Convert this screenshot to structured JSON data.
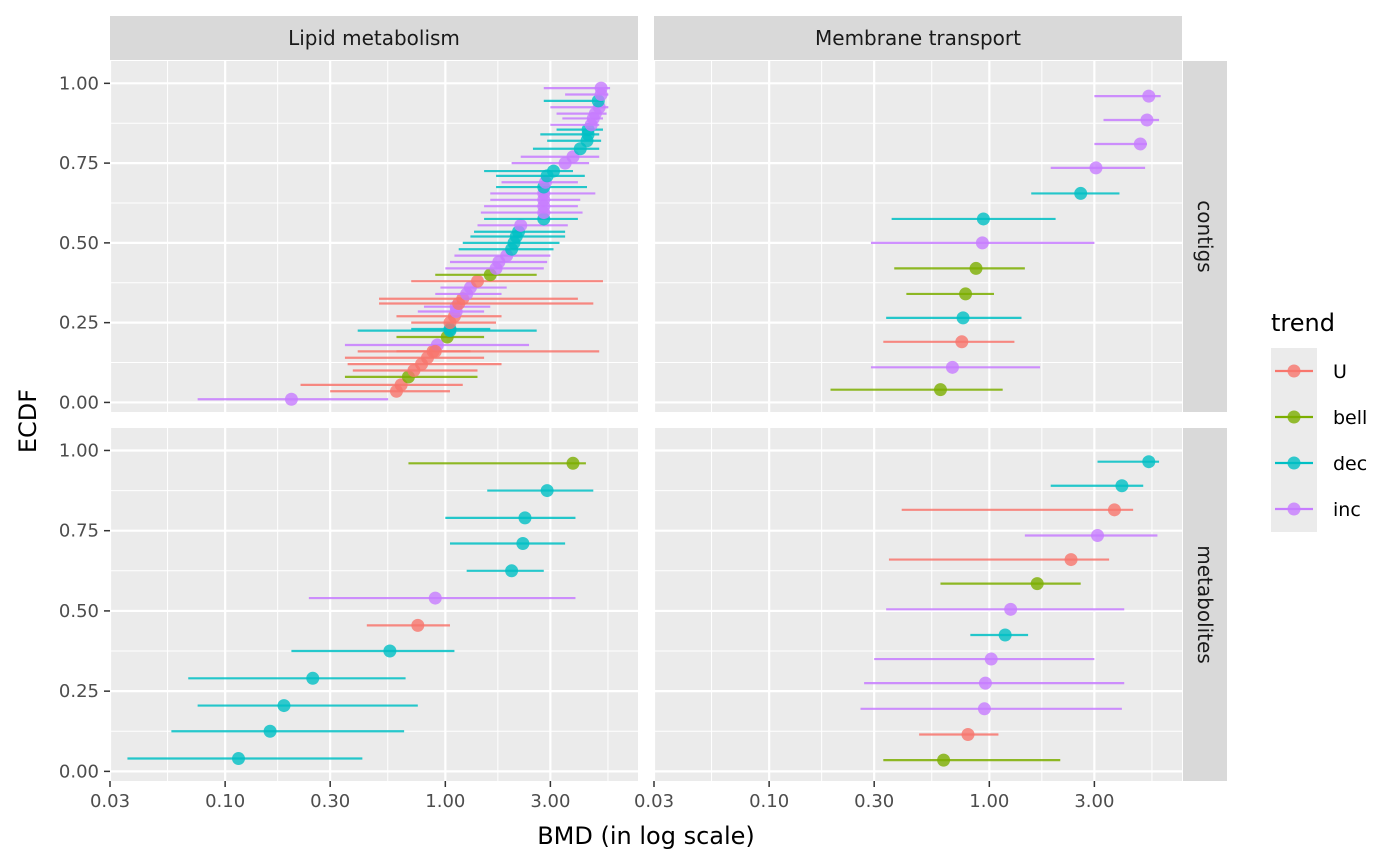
{
  "chart_data": {
    "type": "scatter",
    "subtype": "faceted dot plot with horizontal error bars",
    "xlabel": "BMD (in log scale)",
    "ylabel": "ECDF",
    "x_scale": "log10",
    "xlim": [
      0.03,
      7.5
    ],
    "ylim": [
      -0.03,
      1.07
    ],
    "x_ticks": [
      0.03,
      0.1,
      0.3,
      1,
      3
    ],
    "x_tick_labels": [
      "0.03",
      "0.10",
      "0.30",
      "1.00",
      "3.00"
    ],
    "y_ticks": [
      0,
      0.25,
      0.5,
      0.75,
      1
    ],
    "y_tick_labels": [
      "0.00",
      "0.25",
      "0.50",
      "0.75",
      "1.00"
    ],
    "grid": true,
    "columns": [
      "Lipid metabolism",
      "Membrane transport"
    ],
    "rows": [
      "contigs",
      "metabolites"
    ],
    "legend": {
      "title": "trend",
      "placement": "right",
      "entries": [
        {
          "label": "U",
          "color": "#F8766D"
        },
        {
          "label": "bell",
          "color": "#7CAE00"
        },
        {
          "label": "dec",
          "color": "#00BFC4"
        },
        {
          "label": "inc",
          "color": "#C77CFF"
        }
      ]
    },
    "panels": [
      {
        "column": "Lipid metabolism",
        "row": "contigs",
        "points": [
          {
            "trend": "inc",
            "y": 0.01,
            "x": 0.2,
            "lo": 0.075,
            "hi": 0.55
          },
          {
            "trend": "U",
            "y": 0.035,
            "x": 0.6,
            "lo": 0.3,
            "hi": 1.05
          },
          {
            "trend": "U",
            "y": 0.055,
            "x": 0.63,
            "lo": 0.22,
            "hi": 1.2
          },
          {
            "trend": "bell",
            "y": 0.08,
            "x": 0.68,
            "lo": 0.35,
            "hi": 1.4
          },
          {
            "trend": "U",
            "y": 0.1,
            "x": 0.72,
            "lo": 0.38,
            "hi": 1.4
          },
          {
            "trend": "U",
            "y": 0.12,
            "x": 0.78,
            "lo": 0.36,
            "hi": 1.8
          },
          {
            "trend": "U",
            "y": 0.14,
            "x": 0.83,
            "lo": 0.35,
            "hi": 1.5
          },
          {
            "trend": "U",
            "y": 0.16,
            "x": 0.88,
            "lo": 0.4,
            "hi": 1.3
          },
          {
            "trend": "inc",
            "y": 0.18,
            "x": 0.92,
            "lo": 0.35,
            "hi": 2.4
          },
          {
            "trend": "U",
            "y": 0.16,
            "x": 0.9,
            "lo": 0.6,
            "hi": 5.0
          },
          {
            "trend": "bell",
            "y": 0.205,
            "x": 1.02,
            "lo": 0.6,
            "hi": 1.5
          },
          {
            "trend": "dec",
            "y": 0.225,
            "x": 1.05,
            "lo": 0.4,
            "hi": 2.6
          },
          {
            "trend": "dec",
            "y": 0.23,
            "x": 1.05,
            "lo": 0.7,
            "hi": 1.6
          },
          {
            "trend": "U",
            "y": 0.25,
            "x": 1.05,
            "lo": 0.7,
            "hi": 1.7
          },
          {
            "trend": "U",
            "y": 0.27,
            "x": 1.1,
            "lo": 0.6,
            "hi": 1.8
          },
          {
            "trend": "inc",
            "y": 0.285,
            "x": 1.12,
            "lo": 0.75,
            "hi": 1.5
          },
          {
            "trend": "inc",
            "y": 0.3,
            "x": 1.12,
            "lo": 0.8,
            "hi": 1.6
          },
          {
            "trend": "U",
            "y": 0.31,
            "x": 1.15,
            "lo": 0.5,
            "hi": 4.7
          },
          {
            "trend": "U",
            "y": 0.325,
            "x": 1.2,
            "lo": 0.5,
            "hi": 4.0
          },
          {
            "trend": "inc",
            "y": 0.34,
            "x": 1.25,
            "lo": 0.9,
            "hi": 1.8
          },
          {
            "trend": "inc",
            "y": 0.36,
            "x": 1.3,
            "lo": 0.95,
            "hi": 1.9
          },
          {
            "trend": "U",
            "y": 0.38,
            "x": 1.4,
            "lo": 0.7,
            "hi": 5.2
          },
          {
            "trend": "bell",
            "y": 0.4,
            "x": 1.6,
            "lo": 0.9,
            "hi": 2.6
          },
          {
            "trend": "inc",
            "y": 0.42,
            "x": 1.7,
            "lo": 1.0,
            "hi": 2.8
          },
          {
            "trend": "inc",
            "y": 0.44,
            "x": 1.75,
            "lo": 1.05,
            "hi": 2.9
          },
          {
            "trend": "inc",
            "y": 0.46,
            "x": 1.9,
            "lo": 1.1,
            "hi": 3.0
          },
          {
            "trend": "dec",
            "y": 0.48,
            "x": 2.0,
            "lo": 1.15,
            "hi": 3.1
          },
          {
            "trend": "dec",
            "y": 0.5,
            "x": 2.05,
            "lo": 1.2,
            "hi": 3.3
          },
          {
            "trend": "dec",
            "y": 0.52,
            "x": 2.1,
            "lo": 1.3,
            "hi": 3.5
          },
          {
            "trend": "dec",
            "y": 0.535,
            "x": 2.15,
            "lo": 1.35,
            "hi": 3.5
          },
          {
            "trend": "inc",
            "y": 0.555,
            "x": 2.2,
            "lo": 1.4,
            "hi": 3.6
          },
          {
            "trend": "dec",
            "y": 0.575,
            "x": 2.8,
            "lo": 1.5,
            "hi": 4.0
          },
          {
            "trend": "inc",
            "y": 0.595,
            "x": 2.8,
            "lo": 1.45,
            "hi": 4.2
          },
          {
            "trend": "inc",
            "y": 0.615,
            "x": 2.8,
            "lo": 1.5,
            "hi": 4.0
          },
          {
            "trend": "inc",
            "y": 0.635,
            "x": 2.8,
            "lo": 1.6,
            "hi": 4.1
          },
          {
            "trend": "inc",
            "y": 0.655,
            "x": 2.8,
            "lo": 1.6,
            "hi": 4.8
          },
          {
            "trend": "dec",
            "y": 0.675,
            "x": 2.8,
            "lo": 1.7,
            "hi": 4.4
          },
          {
            "trend": "inc",
            "y": 0.69,
            "x": 2.85,
            "lo": 1.8,
            "hi": 4.0
          },
          {
            "trend": "dec",
            "y": 0.71,
            "x": 2.9,
            "lo": 1.7,
            "hi": 4.3
          },
          {
            "trend": "dec",
            "y": 0.725,
            "x": 3.1,
            "lo": 1.5,
            "hi": 3.8
          },
          {
            "trend": "inc",
            "y": 0.75,
            "x": 3.5,
            "lo": 2.0,
            "hi": 4.5
          },
          {
            "trend": "inc",
            "y": 0.77,
            "x": 3.8,
            "lo": 2.2,
            "hi": 5.0
          },
          {
            "trend": "dec",
            "y": 0.795,
            "x": 4.1,
            "lo": 2.5,
            "hi": 5.0
          },
          {
            "trend": "dec",
            "y": 0.82,
            "x": 4.4,
            "lo": 2.9,
            "hi": 5.1
          },
          {
            "trend": "dec",
            "y": 0.84,
            "x": 4.45,
            "lo": 2.7,
            "hi": 5.0
          },
          {
            "trend": "dec",
            "y": 0.855,
            "x": 4.45,
            "lo": 3.2,
            "hi": 5.2
          },
          {
            "trend": "inc",
            "y": 0.87,
            "x": 4.6,
            "lo": 3.0,
            "hi": 5.0
          },
          {
            "trend": "inc",
            "y": 0.89,
            "x": 4.7,
            "lo": 3.4,
            "hi": 5.2
          },
          {
            "trend": "inc",
            "y": 0.905,
            "x": 4.8,
            "lo": 3.2,
            "hi": 5.4
          },
          {
            "trend": "inc",
            "y": 0.925,
            "x": 5.0,
            "lo": 3.0,
            "hi": 5.5
          },
          {
            "trend": "dec",
            "y": 0.945,
            "x": 4.95,
            "lo": 2.8,
            "hi": 5.2
          },
          {
            "trend": "inc",
            "y": 0.965,
            "x": 5.1,
            "lo": 3.5,
            "hi": 5.5
          },
          {
            "trend": "inc",
            "y": 0.985,
            "x": 5.1,
            "lo": 2.8,
            "hi": 5.6
          }
        ]
      },
      {
        "column": "Membrane transport",
        "row": "contigs",
        "points": [
          {
            "trend": "bell",
            "y": 0.04,
            "x": 0.6,
            "lo": 0.19,
            "hi": 1.15
          },
          {
            "trend": "inc",
            "y": 0.11,
            "x": 0.68,
            "lo": 0.29,
            "hi": 1.7
          },
          {
            "trend": "U",
            "y": 0.19,
            "x": 0.75,
            "lo": 0.33,
            "hi": 1.3
          },
          {
            "trend": "dec",
            "y": 0.265,
            "x": 0.76,
            "lo": 0.34,
            "hi": 1.4
          },
          {
            "trend": "bell",
            "y": 0.34,
            "x": 0.78,
            "lo": 0.42,
            "hi": 1.05
          },
          {
            "trend": "bell",
            "y": 0.42,
            "x": 0.87,
            "lo": 0.37,
            "hi": 1.45
          },
          {
            "trend": "inc",
            "y": 0.5,
            "x": 0.93,
            "lo": 0.29,
            "hi": 3.0
          },
          {
            "trend": "dec",
            "y": 0.575,
            "x": 0.94,
            "lo": 0.36,
            "hi": 2.0
          },
          {
            "trend": "dec",
            "y": 0.655,
            "x": 2.6,
            "lo": 1.55,
            "hi": 3.9
          },
          {
            "trend": "inc",
            "y": 0.735,
            "x": 3.05,
            "lo": 1.9,
            "hi": 5.1
          },
          {
            "trend": "inc",
            "y": 0.81,
            "x": 4.85,
            "lo": 3.0,
            "hi": 5.2
          },
          {
            "trend": "inc",
            "y": 0.885,
            "x": 5.2,
            "lo": 3.3,
            "hi": 5.9
          },
          {
            "trend": "inc",
            "y": 0.96,
            "x": 5.3,
            "lo": 3.0,
            "hi": 6.0
          }
        ]
      },
      {
        "column": "Lipid metabolism",
        "row": "metabolites",
        "points": [
          {
            "trend": "dec",
            "y": 0.04,
            "x": 0.115,
            "lo": 0.036,
            "hi": 0.42
          },
          {
            "trend": "dec",
            "y": 0.125,
            "x": 0.16,
            "lo": 0.057,
            "hi": 0.65
          },
          {
            "trend": "dec",
            "y": 0.205,
            "x": 0.185,
            "lo": 0.075,
            "hi": 0.75
          },
          {
            "trend": "dec",
            "y": 0.29,
            "x": 0.25,
            "lo": 0.068,
            "hi": 0.66
          },
          {
            "trend": "dec",
            "y": 0.375,
            "x": 0.56,
            "lo": 0.2,
            "hi": 1.1
          },
          {
            "trend": "U",
            "y": 0.455,
            "x": 0.75,
            "lo": 0.44,
            "hi": 1.05
          },
          {
            "trend": "inc",
            "y": 0.54,
            "x": 0.9,
            "lo": 0.24,
            "hi": 3.9
          },
          {
            "trend": "dec",
            "y": 0.625,
            "x": 2.0,
            "lo": 1.25,
            "hi": 2.8
          },
          {
            "trend": "dec",
            "y": 0.71,
            "x": 2.25,
            "lo": 1.05,
            "hi": 3.5
          },
          {
            "trend": "dec",
            "y": 0.79,
            "x": 2.3,
            "lo": 1.0,
            "hi": 3.9
          },
          {
            "trend": "dec",
            "y": 0.875,
            "x": 2.9,
            "lo": 1.55,
            "hi": 4.7
          },
          {
            "trend": "bell",
            "y": 0.96,
            "x": 3.8,
            "lo": 0.68,
            "hi": 4.35
          }
        ]
      },
      {
        "column": "Membrane transport",
        "row": "metabolites",
        "points": [
          {
            "trend": "bell",
            "y": 0.035,
            "x": 0.62,
            "lo": 0.33,
            "hi": 2.1
          },
          {
            "trend": "U",
            "y": 0.115,
            "x": 0.8,
            "lo": 0.48,
            "hi": 1.1
          },
          {
            "trend": "inc",
            "y": 0.195,
            "x": 0.95,
            "lo": 0.26,
            "hi": 4.0
          },
          {
            "trend": "inc",
            "y": 0.275,
            "x": 0.96,
            "lo": 0.27,
            "hi": 4.1
          },
          {
            "trend": "inc",
            "y": 0.35,
            "x": 1.02,
            "lo": 0.3,
            "hi": 3.0
          },
          {
            "trend": "dec",
            "y": 0.425,
            "x": 1.18,
            "lo": 0.82,
            "hi": 1.5
          },
          {
            "trend": "inc",
            "y": 0.505,
            "x": 1.25,
            "lo": 0.34,
            "hi": 4.1
          },
          {
            "trend": "bell",
            "y": 0.585,
            "x": 1.65,
            "lo": 0.6,
            "hi": 2.6
          },
          {
            "trend": "U",
            "y": 0.66,
            "x": 2.35,
            "lo": 0.35,
            "hi": 3.5
          },
          {
            "trend": "inc",
            "y": 0.735,
            "x": 3.1,
            "lo": 1.45,
            "hi": 5.8
          },
          {
            "trend": "U",
            "y": 0.815,
            "x": 3.7,
            "lo": 0.4,
            "hi": 4.5
          },
          {
            "trend": "dec",
            "y": 0.89,
            "x": 4.0,
            "lo": 1.9,
            "hi": 5.0
          },
          {
            "trend": "dec",
            "y": 0.965,
            "x": 5.3,
            "lo": 3.1,
            "hi": 5.9
          }
        ]
      }
    ]
  }
}
